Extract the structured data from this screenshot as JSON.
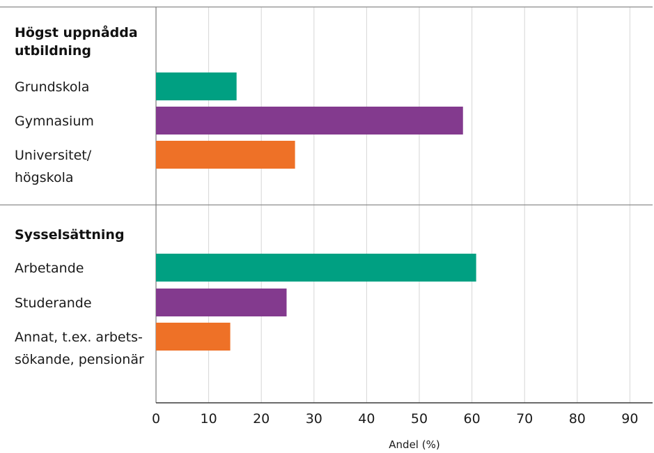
{
  "chart_data": {
    "type": "bar",
    "orientation": "horizontal",
    "xlabel": "Andel (%)",
    "xlim": [
      0,
      95
    ],
    "ticks": [
      0,
      10,
      20,
      30,
      40,
      50,
      60,
      70,
      80,
      90
    ],
    "grid": true,
    "groups": [
      {
        "header": [
          "Högst uppnådda",
          "utbildning"
        ],
        "bars": [
          {
            "label": [
              "Grundskola"
            ],
            "value": 15.3,
            "color": "#00a082"
          },
          {
            "label": [
              "Gymnasium"
            ],
            "value": 58.3,
            "color": "#833a8e"
          },
          {
            "label": [
              "Universitet/",
              "högskola"
            ],
            "value": 26.4,
            "color": "#ee7127"
          }
        ]
      },
      {
        "header": [
          "Sysselsättning"
        ],
        "bars": [
          {
            "label": [
              "Arbetande"
            ],
            "value": 60.8,
            "color": "#00a082"
          },
          {
            "label": [
              "Studerande"
            ],
            "value": 24.8,
            "color": "#833a8e"
          },
          {
            "label": [
              "Annat, t.ex. arbets-",
              "sökande, pensionär"
            ],
            "value": 14.1,
            "color": "#ee7127"
          }
        ]
      }
    ]
  }
}
